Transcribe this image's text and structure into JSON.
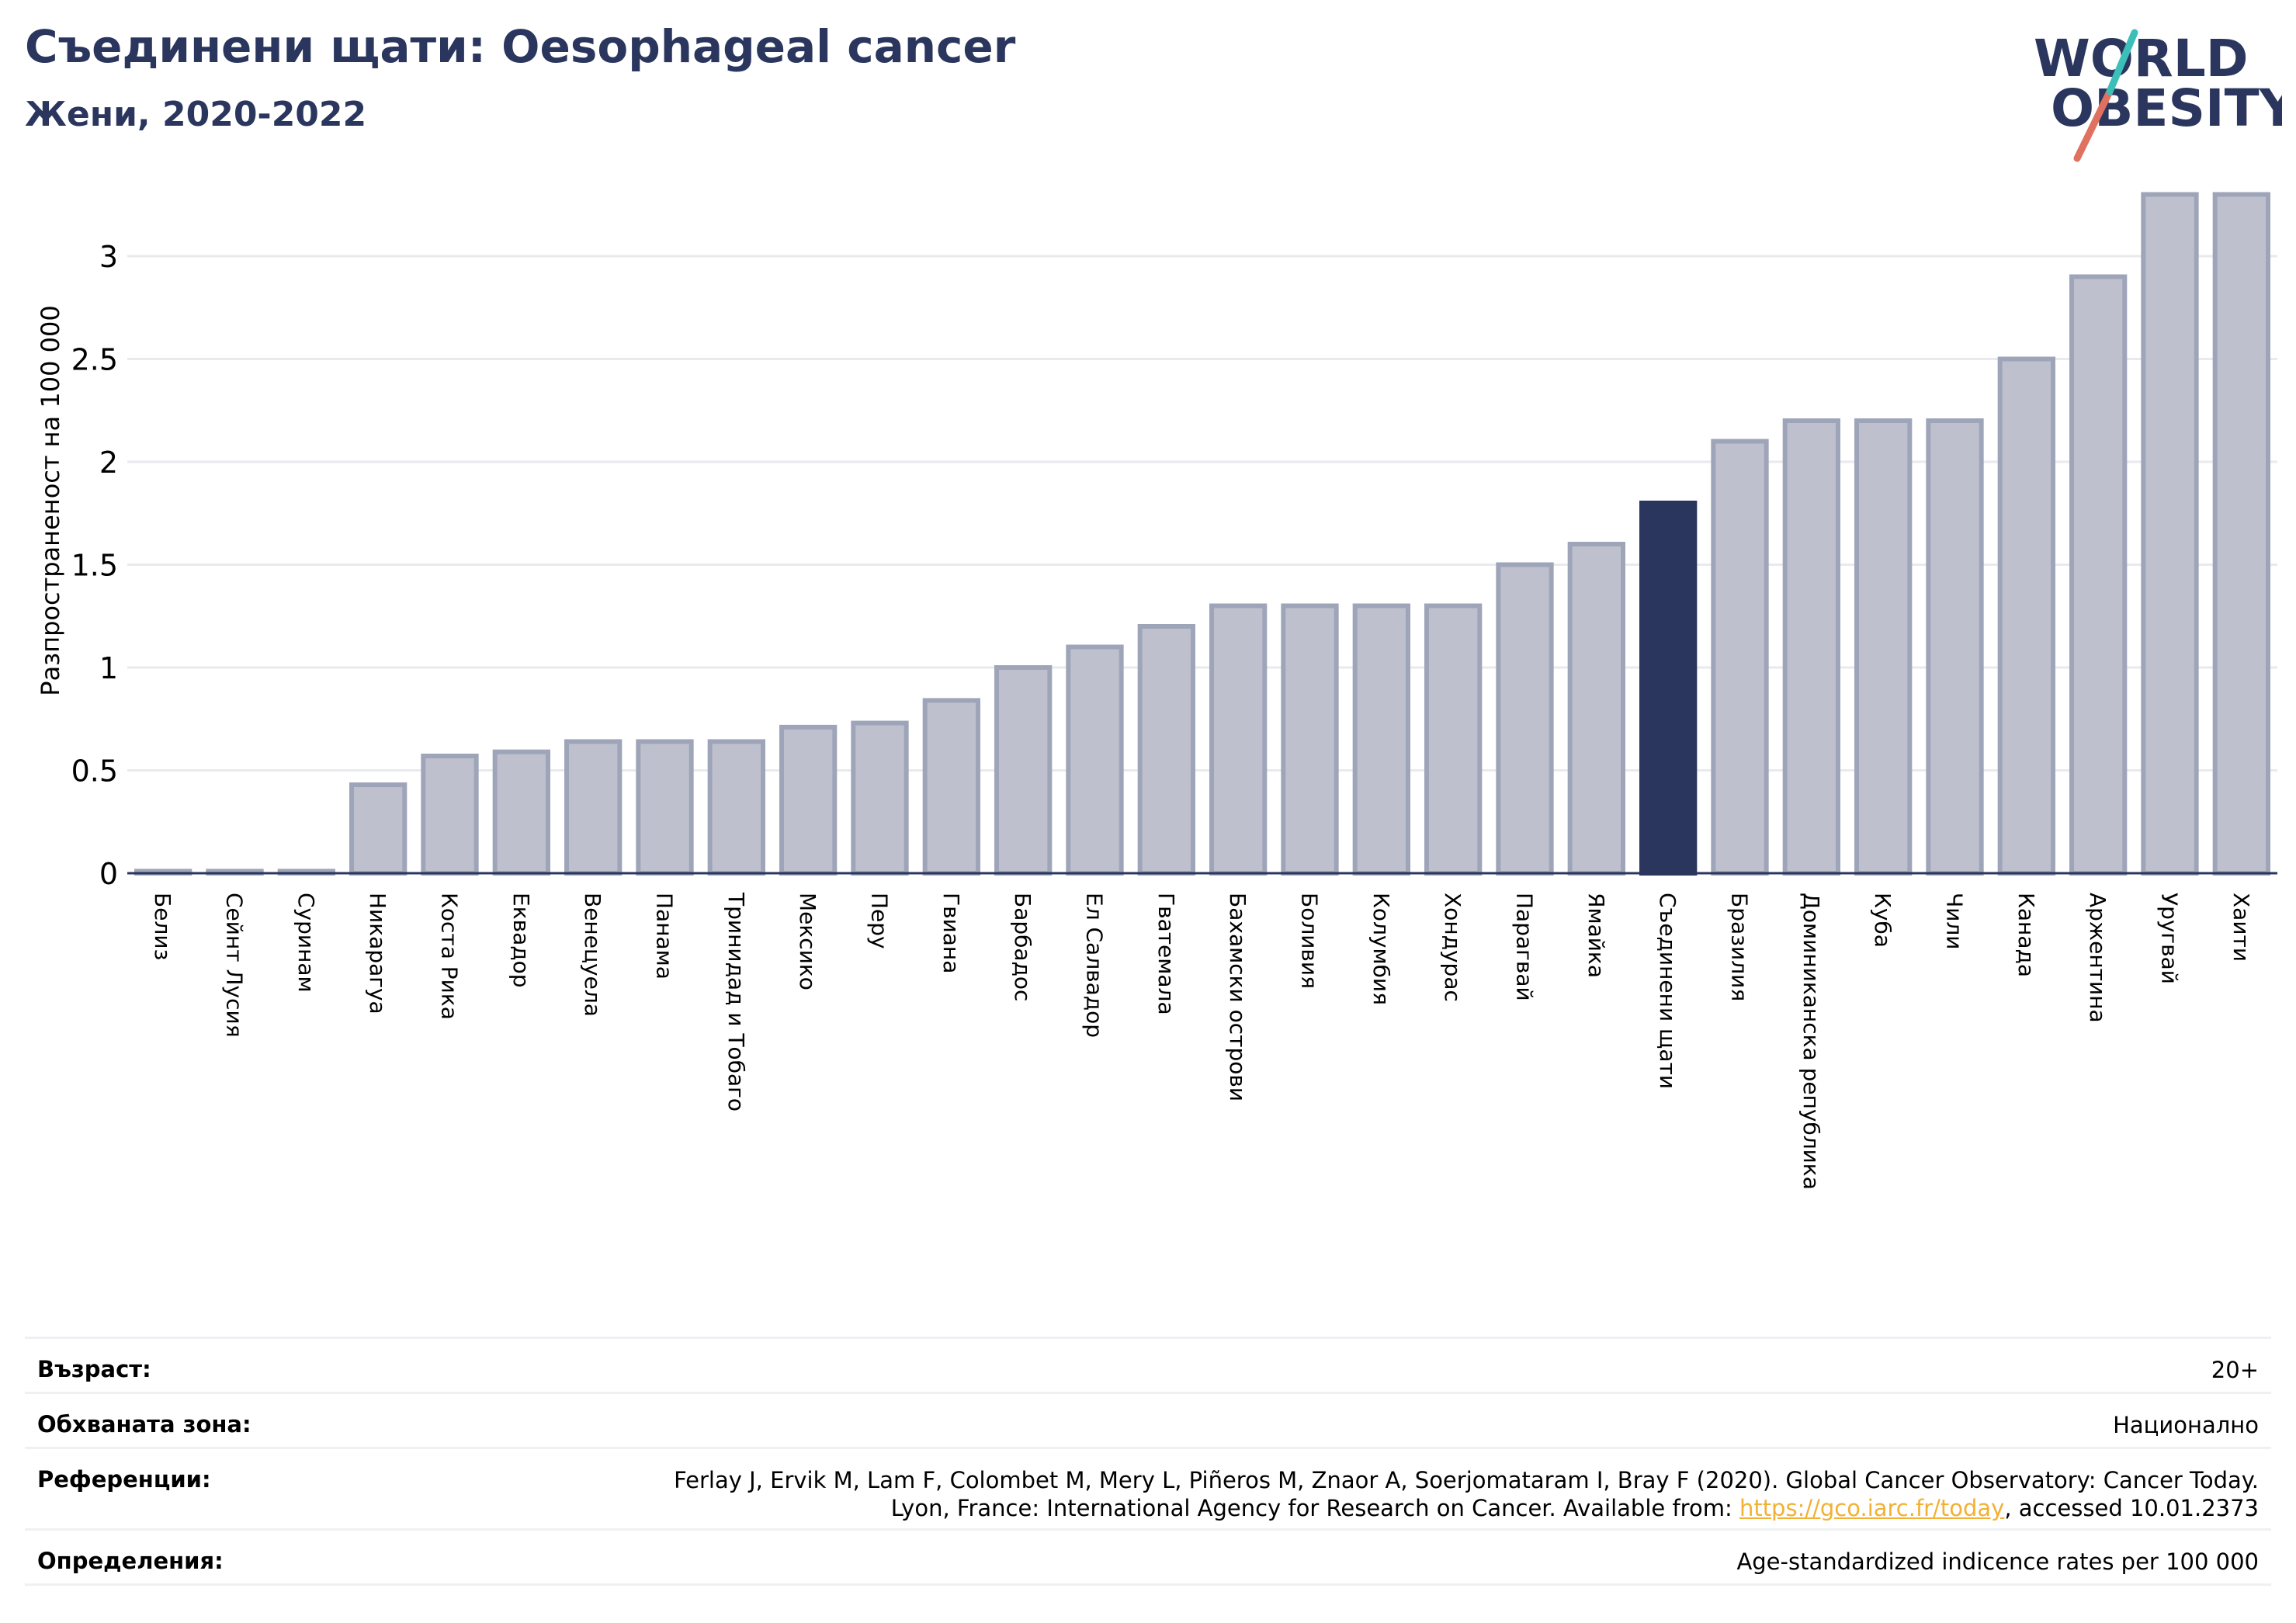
{
  "header": {
    "title": "Съединени щати: Oesophageal cancer",
    "subtitle": "Жени, 2020-2022"
  },
  "logo": {
    "line1": "WORLD",
    "line2": "OBESITY"
  },
  "chart_data": {
    "type": "bar",
    "ylabel": "Разпространеност  на 100 000",
    "ylim": [
      0,
      3.3
    ],
    "yticks": [
      0,
      0.5,
      1,
      1.5,
      2,
      2.5,
      3
    ],
    "ytick_labels": [
      "0",
      "0.5",
      "1",
      "1.5",
      "2",
      "2.5",
      "3"
    ],
    "grid": true,
    "highlight": "Съединени щати",
    "categories": [
      "Белиз",
      "Сейнт Лусия",
      "Суринам",
      "Никарагуа",
      "Коста Рика",
      "Еквадор",
      "Венецуела",
      "Панама",
      "Тринидад и Тобаго",
      "Мексико",
      "Перу",
      "Гвиана",
      "Барбадос",
      "Ел Салвадор",
      "Гватемала",
      "Бахамски острови",
      "Боливия",
      "Колумбия",
      "Хондурас",
      "Парагвай",
      "Ямайка",
      "Съединени щати",
      "Бразилия",
      "Доминиканска република",
      "Куба",
      "Чили",
      "Канада",
      "Аржентина",
      "Уругвай",
      "Хаити"
    ],
    "values": [
      0.01,
      0.01,
      0.01,
      0.43,
      0.57,
      0.59,
      0.64,
      0.64,
      0.64,
      0.71,
      0.73,
      0.84,
      1.0,
      1.1,
      1.2,
      1.3,
      1.3,
      1.3,
      1.3,
      1.5,
      1.6,
      1.8,
      2.1,
      2.2,
      2.2,
      2.2,
      2.5,
      2.9,
      3.3,
      3.3
    ],
    "colors": {
      "bar": "#bec1cd",
      "bar_edge": "#9fa5b9",
      "highlight": "#2b365e",
      "grid": "#e8eaee",
      "axis": "#2b365e"
    }
  },
  "info": [
    {
      "label": "Възраст:",
      "value": "20+"
    },
    {
      "label": "Обхваната зона:",
      "value": "Национално"
    },
    {
      "label": "Референции:",
      "value_line1": "Ferlay J, Ervik M, Lam F, Colombet M, Mery L, Piñeros M, Znaor A, Soerjomataram I, Bray F (2020). Global Cancer Observatory: Cancer Today.",
      "value_line2_pre": "Lyon, France: International Agency for Research on Cancer. Available from: ",
      "link": "https://gco.iarc.fr/today",
      "value_line2_post": ", accessed 10.01.2373"
    },
    {
      "label": "Определения:",
      "value": "Age-standardized indicence rates per 100 000"
    }
  ]
}
